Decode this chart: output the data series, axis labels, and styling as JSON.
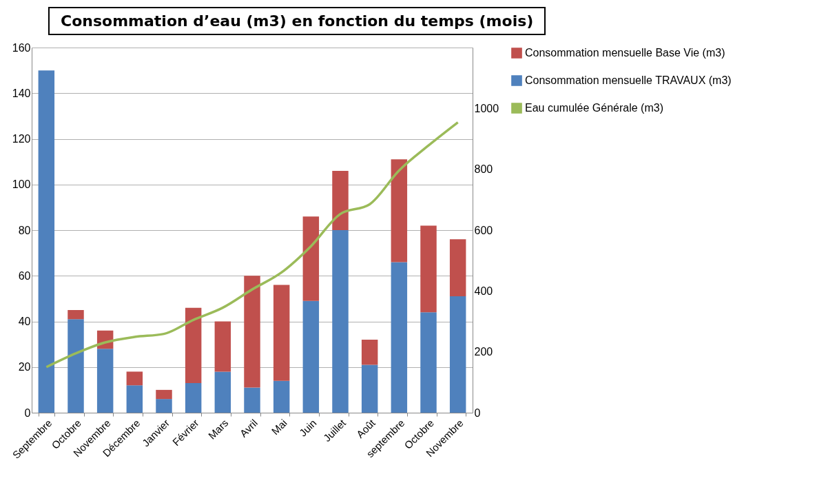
{
  "chart_data": {
    "type": "bar",
    "title": "Consommation d’eau (m3) en fonction du temps (mois)",
    "categories": [
      "Septembre",
      "Octobre",
      "Novembre",
      "Décembre",
      "Janvier",
      "Février",
      "Mars",
      "Avril",
      "Mai",
      "Juin",
      "Juillet",
      "Août",
      "septembre",
      "Octobre",
      "Novembre"
    ],
    "stacked": true,
    "series": [
      {
        "name": "Consommation mensuelle TRAVAUX (m3)",
        "color": "#4f81bd",
        "values": [
          150,
          41,
          28,
          12,
          6,
          13,
          18,
          11,
          14,
          49,
          80,
          21,
          66,
          44,
          51
        ]
      },
      {
        "name": "Consommation mensuelle Base Vie (m3)",
        "color": "#c0504d",
        "values": [
          0,
          4,
          8,
          6,
          4,
          33,
          22,
          49,
          42,
          37,
          26,
          11,
          45,
          38,
          25
        ]
      },
      {
        "name": "Eau cumulée Générale (m3)",
        "color": "#9bbb59",
        "type": "line",
        "axis": "y2",
        "values": [
          150,
          195,
          231,
          249,
          259,
          305,
          345,
          405,
          461,
          547,
          653,
          685,
          796,
          878,
          954
        ]
      }
    ],
    "ylim": [
      0,
      160
    ],
    "yticks": [
      0,
      20,
      40,
      60,
      80,
      100,
      120,
      140,
      160
    ],
    "y2lim": [
      0,
      1200
    ],
    "y2ticks": [
      0,
      200,
      400,
      600,
      800,
      1000
    ],
    "grid": "y",
    "legend": "right",
    "marker": "none",
    "line_style": "solid"
  }
}
